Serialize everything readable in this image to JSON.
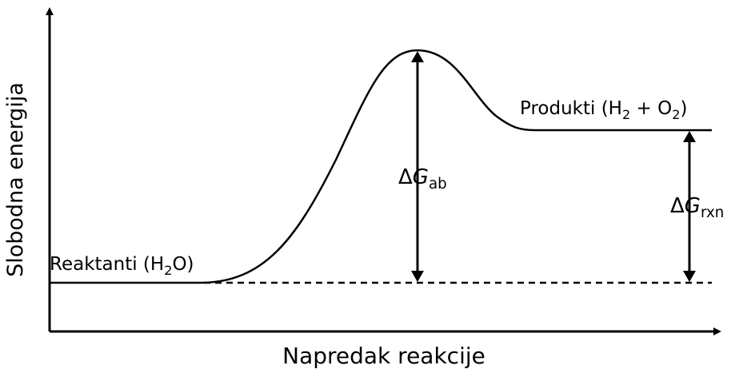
{
  "axes": {
    "y_label": "Slobodna energija",
    "x_label": "Napredak reakcije"
  },
  "labels": {
    "reactants": [
      {
        "text": "Reaktanti (H"
      },
      {
        "text": "2",
        "sub": true
      },
      {
        "text": "O)"
      }
    ],
    "products": [
      {
        "text": "Produkti (H"
      },
      {
        "text": "2",
        "sub": true
      },
      {
        "text": " + O"
      },
      {
        "text": "2",
        "sub": true
      },
      {
        "text": ")"
      }
    ],
    "activation": [
      {
        "text": "Δ"
      },
      {
        "text": "G",
        "italic": true
      },
      {
        "text": "ab",
        "sub": true
      }
    ],
    "reaction": [
      {
        "text": "Δ"
      },
      {
        "text": "G",
        "italic": true
      },
      {
        "text": "rxn",
        "sub": true
      }
    ]
  }
}
